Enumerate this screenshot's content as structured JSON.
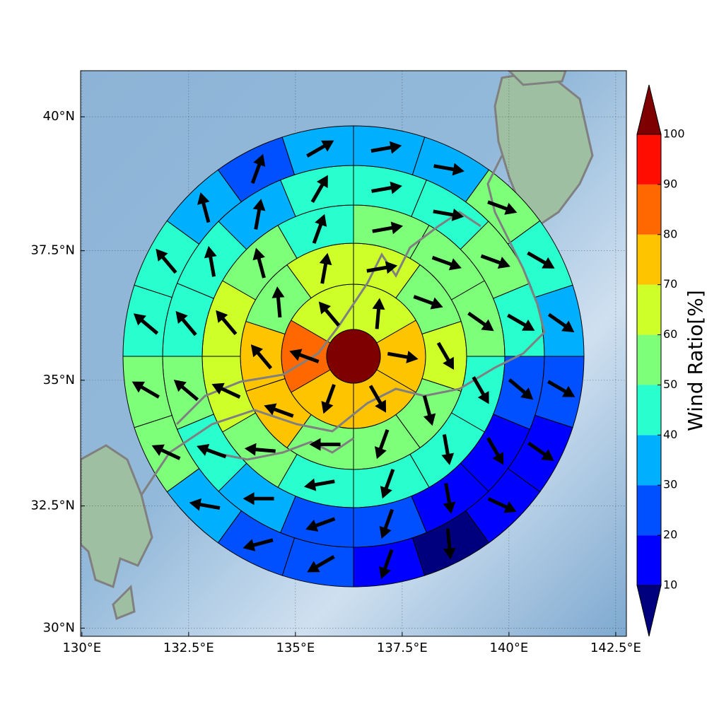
{
  "chart_data": {
    "type": "polar_sector_map",
    "xlim": [
      129.97,
      142.75
    ],
    "ylim": [
      29.83,
      40.84
    ],
    "projection": "mercator",
    "grid": true,
    "xticks": [
      {
        "value": 130,
        "label": "130°E"
      },
      {
        "value": 132.5,
        "label": "132.5°E"
      },
      {
        "value": 135,
        "label": "135°E"
      },
      {
        "value": 137.5,
        "label": "137.5°E"
      },
      {
        "value": 140,
        "label": "140°E"
      },
      {
        "value": 142.5,
        "label": "142.5°E"
      }
    ],
    "yticks": [
      {
        "value": 30,
        "label": "30°N"
      },
      {
        "value": 32.5,
        "label": "32.5°N"
      },
      {
        "value": 35,
        "label": "35°N"
      },
      {
        "value": 37.5,
        "label": "37.5°N"
      },
      {
        "value": 40,
        "label": "40°N"
      }
    ],
    "center_value": 105,
    "rings": [
      {
        "values": [
          65,
          75,
          75,
          75,
          85,
          65
        ],
        "directions": [
          5,
          100,
          150,
          200,
          290,
          320
        ]
      },
      {
        "values": [
          65,
          55,
          65,
          55,
          55,
          55,
          75,
          75,
          55,
          65
        ],
        "directions": [
          80,
          110,
          150,
          165,
          200,
          270,
          290,
          320,
          355,
          10
        ]
      },
      {
        "values": [
          55,
          55,
          55,
          45,
          45,
          45,
          45,
          55,
          65,
          65,
          55,
          45
        ],
        "directions": [
          80,
          110,
          125,
          150,
          170,
          200,
          260,
          275,
          295,
          320,
          345,
          20
        ]
      },
      {
        "values": [
          45,
          45,
          55,
          45,
          25,
          15,
          15,
          25,
          25,
          35,
          45,
          55,
          45,
          45,
          35,
          45
        ],
        "directions": [
          80,
          100,
          110,
          120,
          130,
          150,
          170,
          200,
          250,
          270,
          290,
          310,
          320,
          350,
          10,
          30
        ]
      },
      {
        "values": [
          35,
          35,
          55,
          45,
          35,
          25,
          15,
          15,
          5,
          15,
          25,
          25,
          35,
          55,
          55,
          45,
          45,
          35,
          25,
          35
        ],
        "directions": [
          80,
          100,
          110,
          120,
          125,
          120,
          125,
          115,
          175,
          200,
          240,
          255,
          280,
          295,
          300,
          310,
          320,
          345,
          20,
          60
        ]
      }
    ],
    "colorbar": {
      "label": "Wind Ratio[%]",
      "levels": [
        10,
        20,
        30,
        40,
        50,
        60,
        70,
        80,
        90,
        100
      ],
      "colors": [
        "#00007f",
        "#0000ff",
        "#0050ff",
        "#00b0ff",
        "#29ffce",
        "#7dff7a",
        "#ceff29",
        "#ffc400",
        "#ff6800",
        "#ff0d00",
        "#7f0000"
      ]
    }
  }
}
